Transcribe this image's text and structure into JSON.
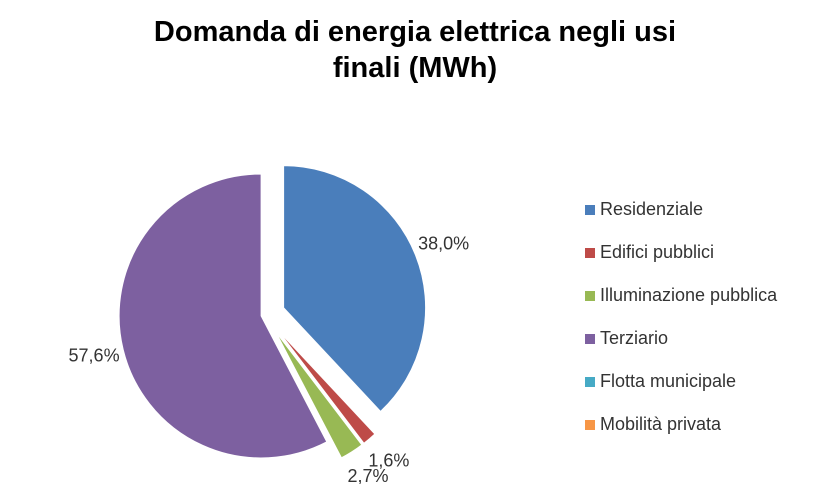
{
  "chart_data": {
    "type": "pie",
    "title": "Domanda di energia elettrica negli usi finali (MWh)",
    "categories": [
      "Residenziale",
      "Edifici pubblici",
      "Illuminazione pubblica",
      "Terziario",
      "Flotta municipale",
      "Mobilità privata"
    ],
    "values": [
      38.0,
      1.6,
      2.7,
      57.6,
      0,
      0
    ],
    "value_labels": [
      "38,0%",
      "1,6%",
      "2,7%",
      "57,6%",
      null,
      null
    ],
    "colors": [
      "#4a7ebb",
      "#be4b48",
      "#98b954",
      "#7d60a0",
      "#46aac5",
      "#f79646"
    ],
    "legend": "right"
  }
}
